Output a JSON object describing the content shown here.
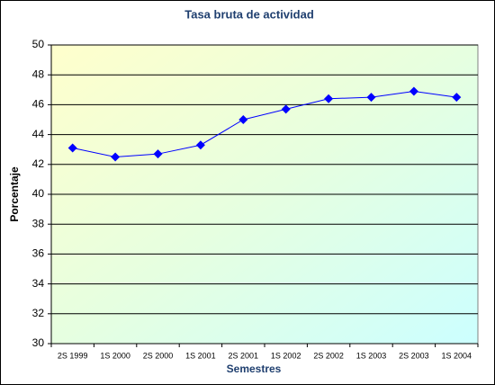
{
  "chart_data": {
    "type": "line",
    "title": "Tasa bruta de actividad",
    "x_label": "Semestres",
    "y_label": "Porcentaje",
    "categories": [
      "2S 1999",
      "1S 2000",
      "2S 2000",
      "1S 2001",
      "2S 2001",
      "1S 2002",
      "2S 2002",
      "1S 2003",
      "2S 2003",
      "1S 2004"
    ],
    "values": [
      43.1,
      42.5,
      42.7,
      43.3,
      45.0,
      45.7,
      46.4,
      46.5,
      46.9,
      46.5
    ],
    "color": "#0000ff",
    "marker": "diamond",
    "ylim": [
      30,
      50
    ],
    "yticks": [
      30,
      32,
      34,
      36,
      38,
      40,
      42,
      44,
      46,
      48,
      50
    ],
    "grid": true
  }
}
